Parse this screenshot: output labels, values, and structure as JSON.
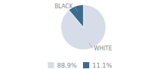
{
  "chart_data": {
    "type": "pie",
    "categories": [
      "WHITE",
      "BLACK"
    ],
    "values": [
      88.9,
      11.1
    ],
    "value_labels": [
      "88.9%",
      "11.1%"
    ],
    "colors": [
      "#d6dde8",
      "#3d6b8c"
    ],
    "legend": "bottom"
  }
}
